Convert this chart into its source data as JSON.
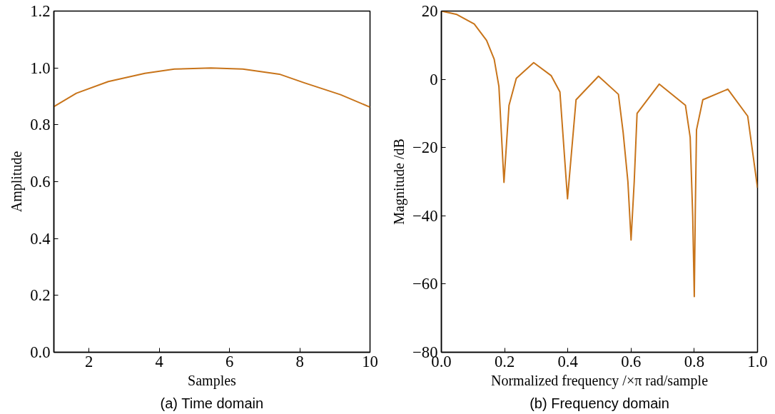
{
  "chart_data": [
    {
      "type": "line",
      "title": "(a) Time domain",
      "xlabel": "Samples",
      "ylabel": "Amplitude",
      "xlim": [
        1,
        10
      ],
      "ylim": [
        0,
        1.2
      ],
      "xticks": [
        2,
        4,
        6,
        8,
        10
      ],
      "yticks": [
        {
          "value": 0,
          "label": "0.0"
        },
        0.2,
        0.4,
        0.6,
        0.8,
        {
          "value": 1,
          "label": "1.0"
        },
        1.2
      ],
      "grid": false,
      "series": [
        {
          "color": "#c8741a",
          "x": [
            1,
            1.64,
            2.55,
            3.59,
            4.43,
            5.47,
            6.38,
            7.42,
            8.12,
            9.16,
            10
          ],
          "values": [
            0.864,
            0.911,
            0.952,
            0.981,
            0.996,
            1.0,
            0.996,
            0.978,
            0.948,
            0.906,
            0.862
          ]
        }
      ]
    },
    {
      "type": "line",
      "title": "(b) Frequency domain",
      "xlabel": "Normalized frequency /×π rad/sample",
      "ylabel": "Magnitude /dB",
      "xlim": [
        0,
        1
      ],
      "ylim": [
        -80,
        20
      ],
      "xticks": [
        {
          "value": 0,
          "label": "0.0"
        },
        0.2,
        0.4,
        0.6,
        0.8,
        {
          "value": 1,
          "label": "1.0"
        }
      ],
      "yticks": [
        -80,
        -60,
        -40,
        -20,
        0,
        20
      ],
      "grid": false,
      "series": [
        {
          "color": "#c8741a",
          "x": [
            0,
            0.049,
            0.104,
            0.143,
            0.167,
            0.182,
            0.198,
            0.214,
            0.237,
            0.292,
            0.347,
            0.375,
            0.399,
            0.426,
            0.497,
            0.56,
            0.575,
            0.59,
            0.6,
            0.61,
            0.619,
            0.689,
            0.772,
            0.787,
            0.795,
            0.8,
            0.803,
            0.807,
            0.827,
            0.906,
            0.969,
            1.0
          ],
          "values": [
            20,
            19,
            16.2,
            11.4,
            5.9,
            -2.1,
            -30.2,
            -7.6,
            0.3,
            4.9,
            1.1,
            -3.7,
            -35,
            -6.0,
            0.9,
            -4.4,
            -15.6,
            -30,
            -47.1,
            -30,
            -10,
            -1.4,
            -7.6,
            -17,
            -40,
            -63.7,
            -40,
            -14.8,
            -6.0,
            -2.9,
            -10.8,
            -31.8
          ]
        }
      ]
    }
  ]
}
